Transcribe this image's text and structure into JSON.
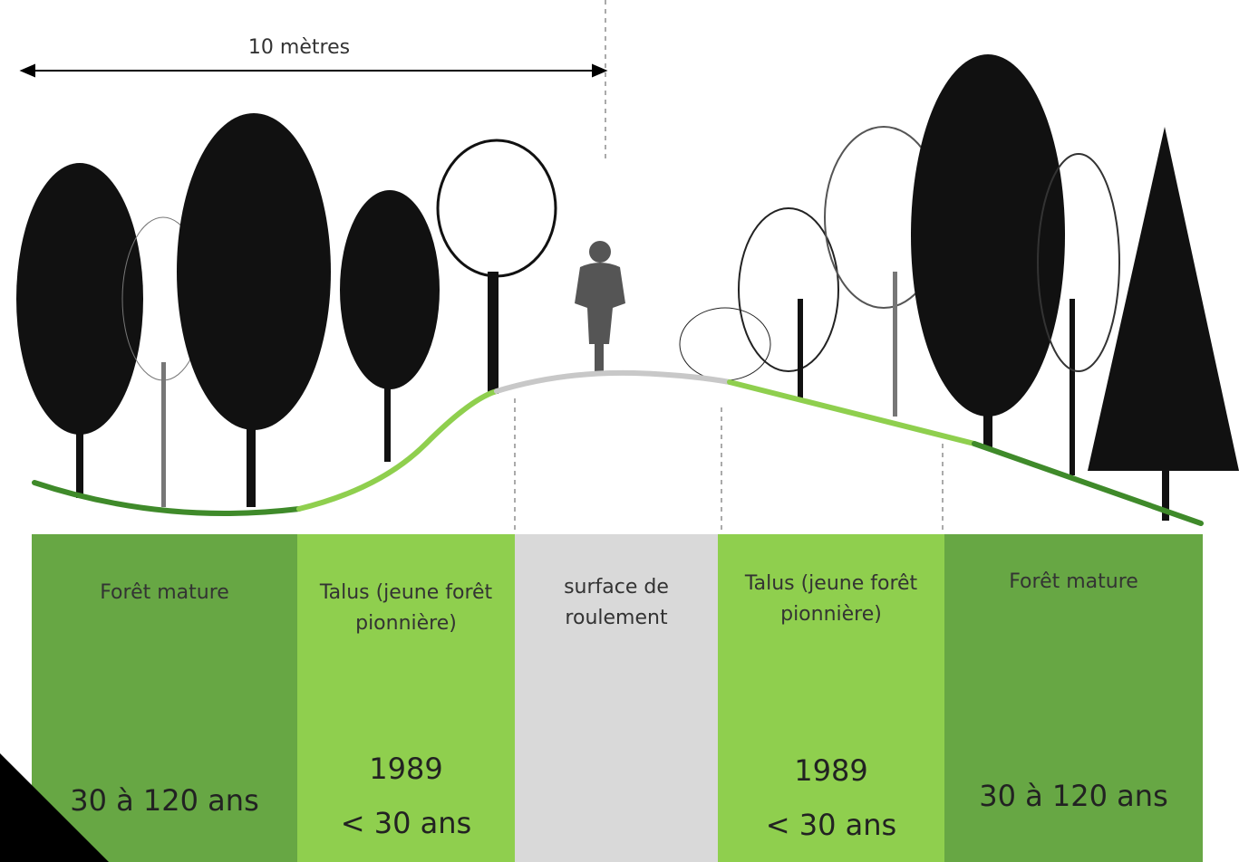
{
  "scale_label": "10 mètres",
  "zones": [
    {
      "label": "Forêt mature",
      "age": "30 à 120 ans"
    },
    {
      "label": "Talus (jeune forêt pionnière)",
      "year": "1989",
      "age": "< 30 ans"
    },
    {
      "label": "surface de roulement"
    },
    {
      "label": "Talus (jeune forêt pionnière)",
      "year": "1989",
      "age": "< 30 ans"
    },
    {
      "label": "Forêt mature",
      "age": "30 à 120 ans"
    }
  ]
}
